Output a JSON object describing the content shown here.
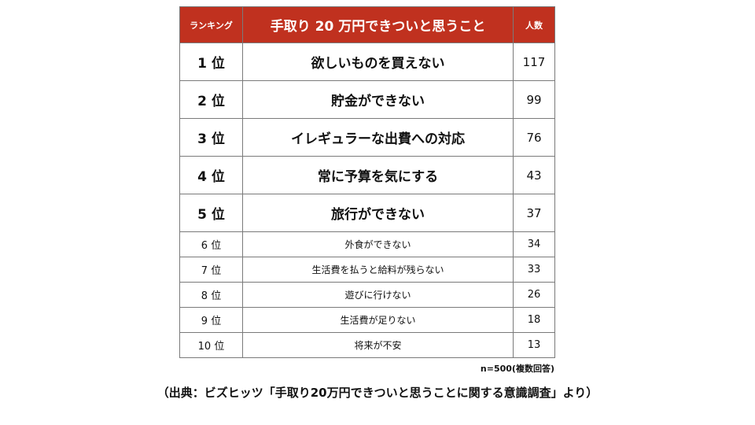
{
  "chart_data": {
    "type": "table",
    "columns": [
      "ランキング",
      "手取り 20 万円できついと思うこと",
      "人数"
    ],
    "rows": [
      {
        "rank": "1 位",
        "item": "欲しいものを買えない",
        "count": 117
      },
      {
        "rank": "2 位",
        "item": "貯金ができない",
        "count": 99
      },
      {
        "rank": "3 位",
        "item": "イレギュラーな出費への対応",
        "count": 76
      },
      {
        "rank": "4 位",
        "item": "常に予算を気にする",
        "count": 43
      },
      {
        "rank": "5 位",
        "item": "旅行ができない",
        "count": 37
      },
      {
        "rank": "6 位",
        "item": "外食ができない",
        "count": 34
      },
      {
        "rank": "7 位",
        "item": "生活費を払うと給料が残らない",
        "count": 33
      },
      {
        "rank": "8 位",
        "item": "遊びに行けない",
        "count": 26
      },
      {
        "rank": "9 位",
        "item": "生活費が足りない",
        "count": 18
      },
      {
        "rank": "10 位",
        "item": "将来が不安",
        "count": 13
      }
    ],
    "note": "n=500(複数回答)",
    "source": "（出典：ビズヒッツ「手取り20万円できついと思うことに関する意識調査」より）",
    "colors": {
      "header_bg": "#c0311f",
      "header_text": "#ffffff",
      "border": "#7a7a7a"
    }
  }
}
